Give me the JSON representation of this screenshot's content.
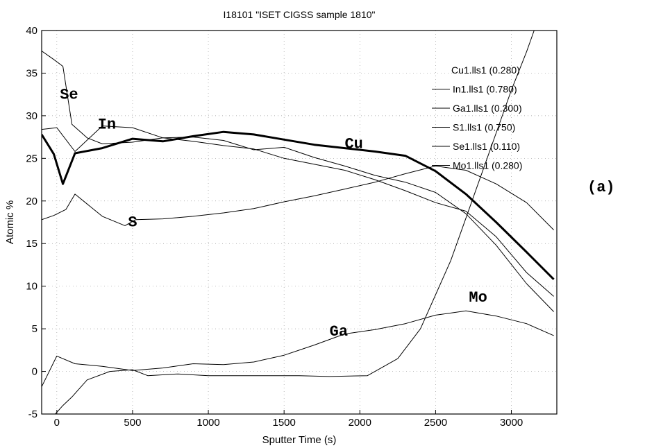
{
  "chart_data": {
    "type": "line",
    "title": "I18101 \"ISET CIGSS sample 1810\"",
    "xlabel": "Sputter Time (s)",
    "ylabel": "Atomic %",
    "xlim": [
      -100,
      3300
    ],
    "ylim": [
      -5,
      40
    ],
    "xticks": [
      0,
      500,
      1000,
      1500,
      2000,
      2500,
      3000
    ],
    "yticks": [
      -5,
      0,
      5,
      10,
      15,
      20,
      25,
      30,
      35,
      40
    ],
    "grid": true,
    "legend_position": "top-right",
    "panel_label": "(a)",
    "legend": [
      "Cu1.lls1 (0.280)",
      "In1.lls1 (0.780)",
      "Ga1.lls1 (0.300)",
      "S1.lls1 (0.750)",
      "Se1.lls1 (0.110)",
      "Mo1.lls1 (0.280)"
    ],
    "annotations": [
      {
        "text": "Se",
        "x": 20,
        "y": 32
      },
      {
        "text": "In",
        "x": 270,
        "y": 28.5
      },
      {
        "text": "S",
        "x": 470,
        "y": 17
      },
      {
        "text": "Cu",
        "x": 1900,
        "y": 26.2
      },
      {
        "text": "Ga",
        "x": 1800,
        "y": 4.2
      },
      {
        "text": "Mo",
        "x": 2720,
        "y": 8.2
      }
    ],
    "series": [
      {
        "name": "Cu",
        "width": 3,
        "x": [
          -100,
          -20,
          40,
          120,
          300,
          500,
          700,
          900,
          1100,
          1300,
          1500,
          1700,
          1900,
          2100,
          2300,
          2500,
          2700,
          2900,
          3100,
          3280
        ],
        "y": [
          27.8,
          25.5,
          22.0,
          25.6,
          26.2,
          27.3,
          27.0,
          27.6,
          28.1,
          27.8,
          27.2,
          26.6,
          26.2,
          25.8,
          25.3,
          23.5,
          20.8,
          17.5,
          14.0,
          10.8
        ]
      },
      {
        "name": "In",
        "width": 1,
        "x": [
          -100,
          0,
          120,
          300,
          500,
          700,
          900,
          1100,
          1300,
          1500,
          1700,
          1900,
          2100,
          2300,
          2500,
          2700,
          2900,
          3100,
          3280
        ],
        "y": [
          28.4,
          28.6,
          25.8,
          28.8,
          28.6,
          27.4,
          27.0,
          26.5,
          26.1,
          25.0,
          24.3,
          23.6,
          22.5,
          21.2,
          19.8,
          18.8,
          15.8,
          11.6,
          8.8
        ]
      },
      {
        "name": "Ga",
        "width": 1,
        "x": [
          -100,
          0,
          120,
          300,
          500,
          700,
          900,
          1100,
          1300,
          1500,
          1700,
          1900,
          2100,
          2300,
          2500,
          2700,
          2900,
          3100,
          3280
        ],
        "y": [
          -1.8,
          1.8,
          0.9,
          0.6,
          0.1,
          0.4,
          0.9,
          0.8,
          1.1,
          1.9,
          3.1,
          4.4,
          4.9,
          5.6,
          6.6,
          7.1,
          6.5,
          5.6,
          4.2
        ]
      },
      {
        "name": "S",
        "width": 1,
        "x": [
          -100,
          -20,
          60,
          120,
          300,
          450,
          520,
          700,
          900,
          1100,
          1300,
          1500,
          1700,
          1900,
          2100,
          2300,
          2500,
          2700,
          2900,
          3100,
          3280
        ],
        "y": [
          17.8,
          18.3,
          19.0,
          20.8,
          18.2,
          17.1,
          17.8,
          17.9,
          18.2,
          18.6,
          19.1,
          19.9,
          20.6,
          21.4,
          22.2,
          23.2,
          24.1,
          23.6,
          22.0,
          19.8,
          16.6
        ]
      },
      {
        "name": "Se",
        "width": 1,
        "x": [
          -100,
          -20,
          40,
          100,
          200,
          300,
          500,
          700,
          900,
          1100,
          1300,
          1500,
          1700,
          1900,
          2100,
          2300,
          2500,
          2700,
          2900,
          3100,
          3280
        ],
        "y": [
          37.6,
          36.6,
          35.8,
          29.0,
          27.4,
          26.7,
          26.9,
          27.4,
          27.5,
          27.1,
          26.0,
          26.3,
          25.1,
          24.1,
          23.0,
          22.2,
          21.0,
          18.5,
          14.8,
          10.3,
          7.0
        ]
      },
      {
        "name": "Mo",
        "width": 1,
        "x": [
          -60,
          40,
          100,
          200,
          350,
          500,
          600,
          800,
          1000,
          1200,
          1400,
          1600,
          1800,
          2050,
          2150,
          2250,
          2400,
          2500,
          2600,
          2700,
          2800,
          2850,
          2900,
          3000,
          3100,
          3150
        ],
        "y": [
          -6.0,
          -4.0,
          -3.0,
          -1.0,
          0.0,
          0.2,
          -0.5,
          -0.3,
          -0.5,
          -0.5,
          -0.5,
          -0.5,
          -0.6,
          -0.5,
          0.5,
          1.5,
          5.0,
          9.0,
          13.0,
          18.0,
          23.0,
          25.5,
          28.0,
          33.0,
          37.5,
          40.0
        ]
      }
    ]
  }
}
